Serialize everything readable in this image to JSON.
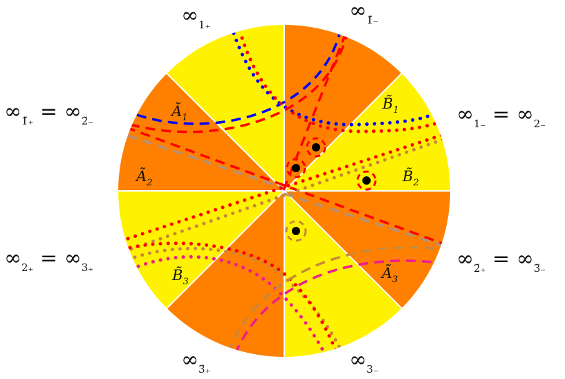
{
  "colors": {
    "sector_a": "#ff8000",
    "sector_b": "#fff200",
    "separator": "#ffffff",
    "blue": "#0000ff",
    "red": "#ff0000",
    "tan": "#c8883a",
    "magenta": "#ee1c8c",
    "gray": "#b5917a",
    "dot": "#000000"
  },
  "infinity_labels": {
    "top_left": {
      "sym": "∞",
      "sub": "1₊"
    },
    "top_right": {
      "sym": "∞",
      "sub": "1̃₋"
    },
    "left_upper": {
      "sym": "∞",
      "sub": "1̃₊",
      "eq": " = ",
      "sym2": "∞",
      "sub2": "2̃₋"
    },
    "right_upper": {
      "sym": "∞",
      "sub": "1₋",
      "eq": " = ",
      "sym2": "∞",
      "sub2": "2₋"
    },
    "left_lower": {
      "sym": "∞",
      "sub": "2₊",
      "eq": " = ",
      "sym2": "∞",
      "sub2": "3₊"
    },
    "right_lower": {
      "sym": "∞",
      "sub": "2̃₊",
      "eq": " = ",
      "sym2": "∞",
      "sub2": "3̃₋"
    },
    "bottom_left": {
      "sym": "∞",
      "sub": "3̃₊"
    },
    "bottom_right": {
      "sym": "∞",
      "sub": "3₋"
    }
  },
  "region_labels": {
    "A1": {
      "letter": "Ã",
      "idx": "1"
    },
    "A2": {
      "letter": "Ã",
      "idx": "2"
    },
    "A3": {
      "letter": "Ã",
      "idx": "3"
    },
    "B1": {
      "letter": "B̃",
      "idx": "1"
    },
    "B2": {
      "letter": "B̃",
      "idx": "2"
    },
    "B3": {
      "letter": "B̃",
      "idx": "3"
    }
  }
}
